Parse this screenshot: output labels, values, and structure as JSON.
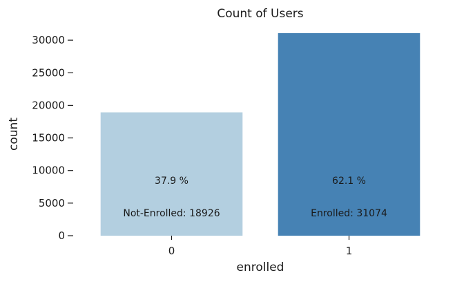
{
  "chart_data": {
    "type": "bar",
    "title": "Count of Users",
    "xlabel": "enrolled",
    "ylabel": "count",
    "categories": [
      "0",
      "1"
    ],
    "values": [
      18926,
      31074
    ],
    "colors": [
      "#b3cfe0",
      "#4682b4"
    ],
    "ylim": [
      0,
      31074
    ],
    "yticks": [
      0,
      5000,
      10000,
      15000,
      20000,
      25000,
      30000
    ],
    "ytick_labels": [
      "0",
      "5000",
      "10000",
      "15000",
      "20000",
      "25000",
      "30000"
    ],
    "grid": false,
    "annotations": [
      {
        "percent": "37.9 %",
        "label": "Not-Enrolled: 18926"
      },
      {
        "percent": "62.1 %",
        "label": "Enrolled: 31074"
      }
    ]
  }
}
